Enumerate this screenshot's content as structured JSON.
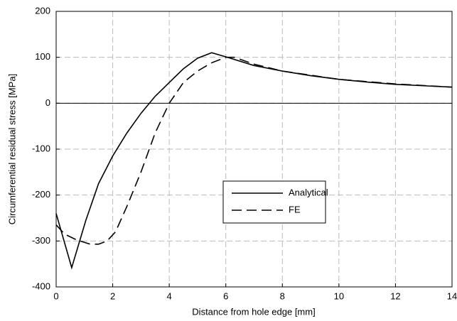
{
  "chart_data": {
    "type": "line",
    "xlabel": "Distance from hole edge [mm]",
    "ylabel": "Circumferential residual stress [MPa]",
    "xlim": [
      0,
      14
    ],
    "xticks": [
      0,
      2,
      4,
      6,
      8,
      10,
      12,
      14
    ],
    "ylim": [
      -400,
      200
    ],
    "yticks": [
      -400,
      -300,
      -200,
      -100,
      0,
      100,
      200
    ],
    "grid": true,
    "reference_line": 0,
    "legend": "right",
    "series": [
      {
        "name": "Analytical",
        "color": "#000000",
        "dash": "solid",
        "x": [
          0,
          0.55,
          1.05,
          1.5,
          2,
          2.5,
          3,
          3.5,
          4,
          4.5,
          5,
          5.5,
          6,
          7,
          8,
          9,
          10,
          11,
          12,
          13,
          14
        ],
        "values": [
          -240,
          -358,
          -255,
          -175,
          -115,
          -65,
          -22,
          15,
          45,
          75,
          98,
          110,
          101,
          82,
          70,
          60,
          52,
          46,
          41,
          38,
          35
        ]
      },
      {
        "name": "FE",
        "color": "#000000",
        "dash": "dashed",
        "x": [
          0,
          0.3,
          0.7,
          1.2,
          1.5,
          1.8,
          2.1,
          2.5,
          3,
          3.5,
          4,
          4.5,
          5,
          5.5,
          6,
          6.3,
          7,
          8,
          10,
          12,
          14
        ],
        "values": [
          -265,
          -285,
          -297,
          -307,
          -307,
          -300,
          -280,
          -225,
          -150,
          -65,
          0,
          45,
          70,
          88,
          100,
          100,
          85,
          70,
          52,
          42,
          35
        ]
      }
    ]
  }
}
